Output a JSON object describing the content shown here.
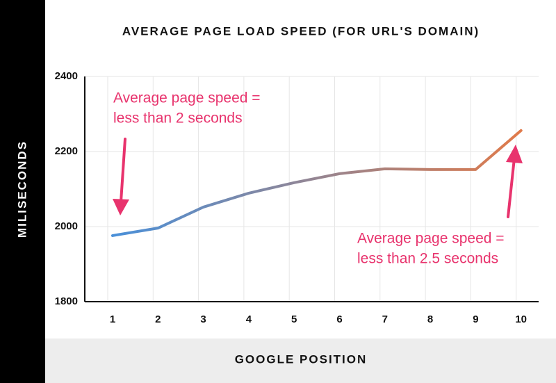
{
  "chart_data": {
    "type": "line",
    "title": "AVERAGE PAGE LOAD SPEED (FOR URL'S DOMAIN)",
    "x_label": "GOOGLE POSITION",
    "y_label": "MILISECONDS",
    "categories": [
      "1",
      "2",
      "3",
      "4",
      "5",
      "6",
      "7",
      "8",
      "9",
      "10"
    ],
    "series": [
      {
        "name": "Average page load speed",
        "color_start": "#4a90d9",
        "color_end": "#e07a4a",
        "values": [
          1976,
          1996,
          2052,
          2089,
          2117,
          2141,
          2154,
          2152,
          2152,
          2256
        ]
      }
    ],
    "ylim": [
      1800,
      2400
    ],
    "yticks": [
      1800,
      2000,
      2200,
      2400
    ],
    "grid": true,
    "annotations": [
      {
        "lines": [
          "Average page speed =",
          "less than 2 seconds"
        ],
        "color": "#e8336d"
      },
      {
        "lines": [
          "Average page speed =",
          "less than 2.5 seconds"
        ],
        "color": "#e8336d"
      }
    ]
  }
}
